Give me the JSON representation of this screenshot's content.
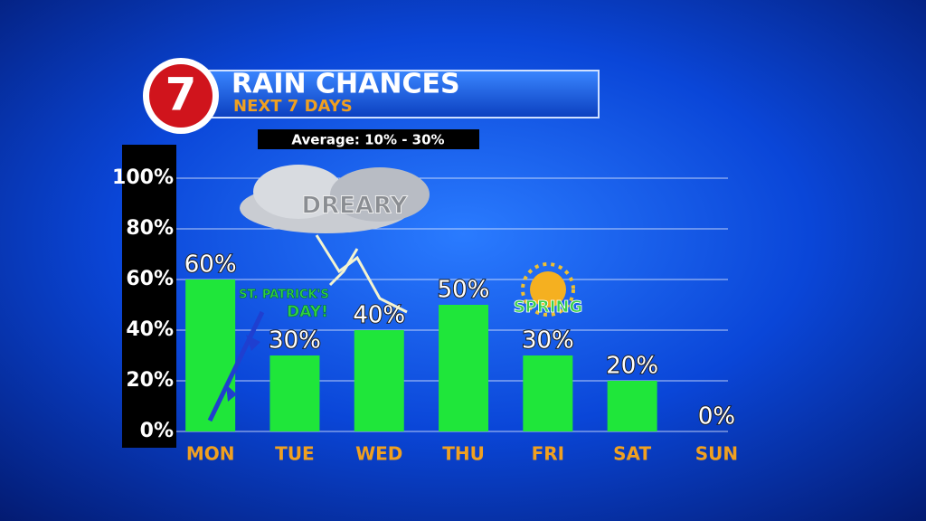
{
  "chart_data": {
    "type": "bar",
    "logo": "7",
    "title": "RAIN CHANCES",
    "subtitle": "NEXT 7 DAYS",
    "note": "Average: 10% - 30%",
    "annotations": [
      "DREARY",
      "ST. PATRICK'S",
      "DAY!",
      "SPRING"
    ],
    "categories": [
      "MON",
      "TUE",
      "WED",
      "THU",
      "FRI",
      "SAT",
      "SUN"
    ],
    "values": [
      60,
      30,
      40,
      50,
      30,
      20,
      0
    ],
    "value_labels": [
      "60%",
      "30%",
      "40%",
      "50%",
      "30%",
      "20%",
      "0%"
    ],
    "color": "#1fe63a",
    "ylim": [
      0,
      100
    ],
    "yticks": [
      {
        "value": 0,
        "label": "0%"
      },
      {
        "value": 20,
        "label": "20%"
      },
      {
        "value": 40,
        "label": "40%"
      },
      {
        "value": 60,
        "label": "60%"
      },
      {
        "value": 80,
        "label": "80%"
      },
      {
        "value": 100,
        "label": "100%"
      }
    ],
    "grid": true
  }
}
